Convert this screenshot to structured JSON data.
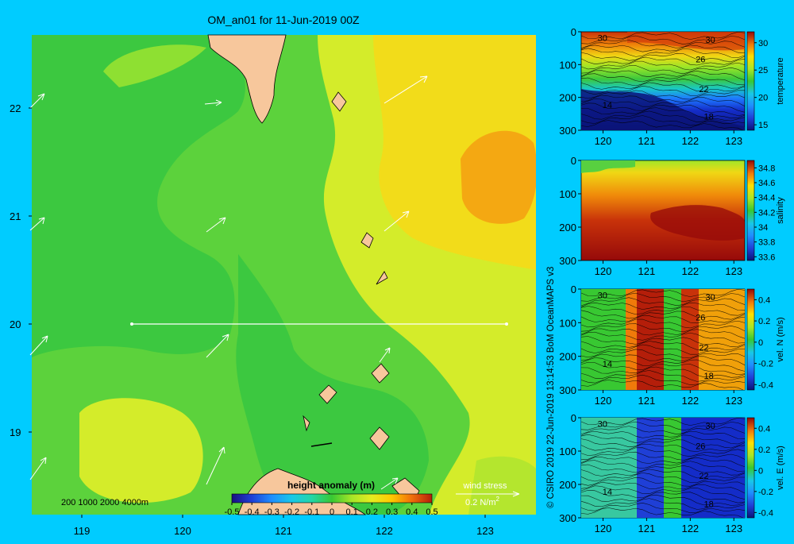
{
  "title": "OM_an01 for 11-Jun-2019 00Z",
  "credit": "© CSIRO 2019   22-Jun-2019 13:14:53 BoM OceanMAPS v3",
  "colors": {
    "background": "#00ccff",
    "land": "#f7c79c"
  },
  "map": {
    "depth_note": "200  1000  2000  4000m",
    "colorbar_label": "height anomaly (m)",
    "colorbar_ticks": [
      "-0.5",
      "-0.4",
      "-0.3",
      "-0.2",
      "-0.1",
      "0",
      "0.1",
      "0.2",
      "0.3",
      "0.4",
      "0.5"
    ],
    "wind_label": "wind stress",
    "wind_ref": "0.2 N/m",
    "wind_ref_sup": "2"
  },
  "chart_data": [
    {
      "type": "heatmap",
      "title": "OM_an01 for 11-Jun-2019 00Z",
      "xlabel": "",
      "ylabel": "",
      "x_ticks": [
        "119",
        "120",
        "121",
        "122",
        "123"
      ],
      "y_ticks": [
        "22",
        "21",
        "20",
        "19"
      ],
      "xlim": [
        118.5,
        123.5
      ],
      "ylim": [
        18.25,
        22.65
      ],
      "colorbar": {
        "label": "height anomaly (m)",
        "range": [
          -0.5,
          0.5
        ]
      },
      "value_regions": [
        {
          "area": "west and central",
          "value": 0.05
        },
        {
          "area": "east",
          "value": 0.2
        },
        {
          "area": "east maximum",
          "value": 0.3
        },
        {
          "area": "southwest",
          "value": 0.15
        }
      ],
      "section_line": {
        "lat": 20,
        "lon": [
          119.5,
          123.2
        ]
      },
      "legend": {
        "wind stress": "0.2 N/m2"
      }
    },
    {
      "type": "heatmap",
      "colorbar_label": "temperature",
      "colorbar_ticks": [
        "30",
        "25",
        "20",
        "15"
      ],
      "colorbar_range": [
        14,
        32
      ],
      "x_ticks": [
        "120",
        "121",
        "122",
        "123"
      ],
      "y_ticks": [
        "0",
        "100",
        "200",
        "300"
      ],
      "contour_labels": [
        "30",
        "30",
        "26",
        "22",
        "18",
        "14"
      ]
    },
    {
      "type": "heatmap",
      "colorbar_label": "salinity",
      "colorbar_ticks": [
        "34.8",
        "34.6",
        "34.4",
        "34.2",
        "34",
        "33.8",
        "33.6"
      ],
      "colorbar_range": [
        33.55,
        34.9
      ],
      "x_ticks": [
        "120",
        "121",
        "122",
        "123"
      ],
      "y_ticks": [
        "0",
        "100",
        "200",
        "300"
      ],
      "contour_labels": []
    },
    {
      "type": "heatmap",
      "colorbar_label": "vel. N (m/s)",
      "colorbar_ticks": [
        "0.4",
        "0.2",
        "0",
        "-0.2",
        "-0.4"
      ],
      "colorbar_range": [
        -0.45,
        0.5
      ],
      "x_ticks": [
        "120",
        "121",
        "122",
        "123"
      ],
      "y_ticks": [
        "0",
        "100",
        "200",
        "300"
      ],
      "contour_labels": [
        "30",
        "30",
        "26",
        "22",
        "18",
        "14"
      ]
    },
    {
      "type": "heatmap",
      "colorbar_label": "vel. E (m/s)",
      "colorbar_ticks": [
        "0.4",
        "0.2",
        "0",
        "-0.2",
        "-0.4"
      ],
      "colorbar_range": [
        -0.45,
        0.5
      ],
      "x_ticks": [
        "120",
        "121",
        "122",
        "123"
      ],
      "y_ticks": [
        "0",
        "100",
        "200",
        "300"
      ],
      "contour_labels": [
        "30",
        "30",
        "26",
        "22",
        "18",
        "14"
      ]
    }
  ]
}
